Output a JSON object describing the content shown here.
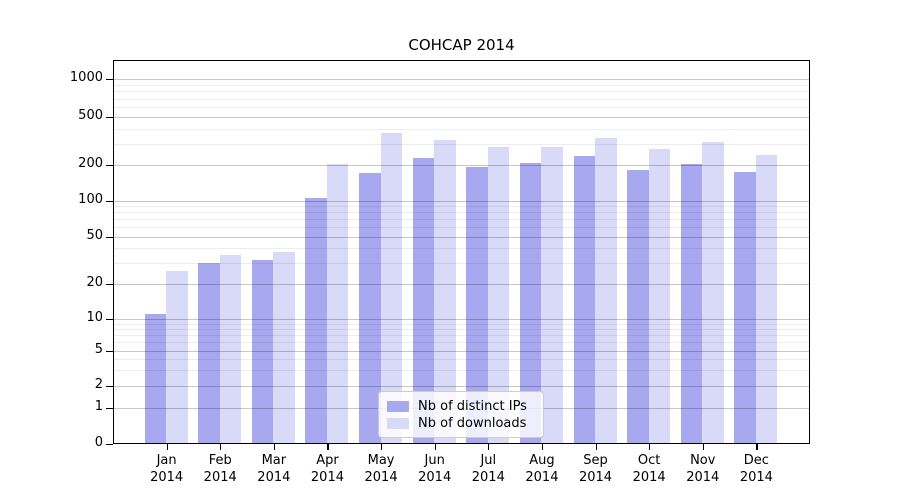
{
  "chart_data": {
    "type": "bar",
    "title": "COHCAP 2014",
    "categories": [
      "Jan",
      "Feb",
      "Mar",
      "Apr",
      "May",
      "Jun",
      "Jul",
      "Aug",
      "Sep",
      "Oct",
      "Nov",
      "Dec"
    ],
    "category_year": "2014",
    "series": [
      {
        "name": "Nb of distinct IPs",
        "key": "distinct-ips",
        "color": "#a8a8f0",
        "values": [
          11,
          30,
          32,
          105,
          170,
          228,
          193,
          207,
          237,
          182,
          205,
          173
        ]
      },
      {
        "name": "Nb of downloads",
        "key": "downloads",
        "color": "#d9d9f8",
        "values": [
          26,
          35,
          37,
          202,
          365,
          323,
          282,
          282,
          335,
          270,
          310,
          243
        ]
      }
    ],
    "y_ticks": [
      0,
      1,
      2,
      5,
      10,
      20,
      50,
      100,
      200,
      500,
      1000
    ],
    "y_minor_ticks": [
      3,
      4,
      6,
      7,
      8,
      9,
      30,
      40,
      60,
      70,
      80,
      90,
      300,
      400,
      600,
      700,
      800,
      900
    ],
    "scale": "log-with-zero",
    "ylim": [
      0,
      1400
    ],
    "grid": true,
    "legend_position": "lower-center"
  }
}
